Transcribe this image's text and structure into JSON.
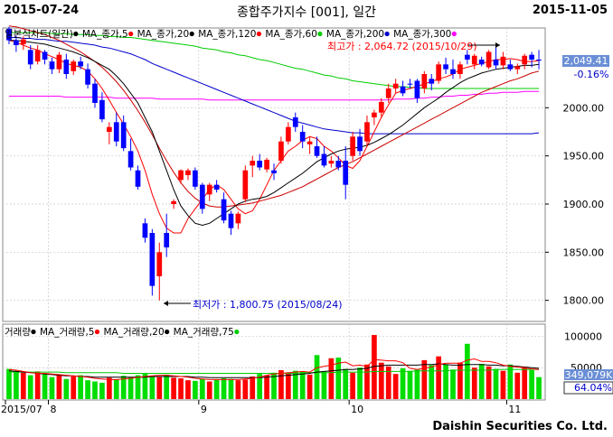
{
  "header": {
    "start_date": "2015-07-24",
    "title": "종합주가지수 [001], 일간",
    "end_date": "2015-11-05"
  },
  "footer": {
    "brand": "Daishin Securities Co. Ltd."
  },
  "price_panel": {
    "legend": [
      {
        "label": "일본식차트(일간)",
        "color": "#000000"
      },
      {
        "label": "MA_종가,5",
        "color": "#ff0000"
      },
      {
        "label": "MA_종가,20",
        "color": "#000000"
      },
      {
        "label": "MA_종가,120",
        "color": "#ff0000"
      },
      {
        "label": "MA_종가,60",
        "color": "#00cc00"
      },
      {
        "label": "MA_종가,200",
        "color": "#0000cc"
      },
      {
        "label": "MA_종가,300",
        "color": "#ff00ff"
      }
    ],
    "high_label": "최고가 : 2,064.72 (2015/10/29)",
    "low_label": "최저가 : 1,800.75 (2015/08/24)",
    "current_price": "2,049.41",
    "change_pct": "-0.16%",
    "y_ticks": [
      "2000.00",
      "1950.00",
      "1900.00",
      "1850.00",
      "1800.00"
    ]
  },
  "volume_panel": {
    "legend": [
      {
        "label": "거래량",
        "color": "#000000"
      },
      {
        "label": "MA_거래량,5",
        "color": "#ff0000"
      },
      {
        "label": "MA_거래량,20",
        "color": "#000000"
      },
      {
        "label": "MA_거래량,75",
        "color": "#00cc00"
      }
    ],
    "current_volume": "349,079K",
    "volume_pct": "64.04%",
    "y_ticks": [
      "100000",
      "50000"
    ]
  },
  "x_axis": {
    "labels": [
      "2015/07",
      "8",
      "9",
      "10",
      "11"
    ]
  },
  "colors": {
    "up": "#ff0000",
    "down": "#0000ff",
    "vol_up": "#ff0000",
    "vol_down": "#00dd00",
    "ma5": "#ff0000",
    "ma20": "#000000",
    "ma60": "#00cc00",
    "ma120": "#cc0000",
    "ma200": "#0000cc",
    "ma300": "#ff00ff",
    "ma_vol75": "#00cc00",
    "grid": "#c8c8c8",
    "price_box": "#6b8fd6"
  },
  "chart_data": [
    {
      "type": "candlestick",
      "title": "종합주가지수 [001], 일간",
      "ylim": [
        1780,
        2080
      ],
      "y_ticks": [
        2000,
        1950,
        1900,
        1850,
        1800
      ],
      "x_labels": [
        "2015/07",
        "8",
        "9",
        "10",
        "11"
      ],
      "candles": [
        [
          2082,
          2084,
          2066,
          2070
        ],
        [
          2070,
          2075,
          2058,
          2065
        ],
        [
          2066,
          2074,
          2060,
          2071
        ],
        [
          2060,
          2065,
          2040,
          2045
        ],
        [
          2048,
          2065,
          2045,
          2060
        ],
        [
          2058,
          2060,
          2045,
          2050
        ],
        [
          2048,
          2052,
          2035,
          2040
        ],
        [
          2040,
          2058,
          2036,
          2055
        ],
        [
          2050,
          2056,
          2030,
          2035
        ],
        [
          2038,
          2050,
          2034,
          2048
        ],
        [
          2048,
          2053,
          2040,
          2043
        ],
        [
          2040,
          2046,
          2020,
          2024
        ],
        [
          2025,
          2030,
          2000,
          2005
        ],
        [
          2008,
          2016,
          1985,
          1988
        ],
        [
          1975,
          1985,
          1962,
          1980
        ],
        [
          1985,
          1995,
          1960,
          1965
        ],
        [
          1985,
          1992,
          1955,
          1958
        ],
        [
          1955,
          1968,
          1935,
          1938
        ],
        [
          1935,
          1940,
          1915,
          1918
        ],
        [
          1880,
          1885,
          1860,
          1865
        ],
        [
          1870,
          1874,
          1805,
          1815
        ],
        [
          1825,
          1860,
          1800,
          1850
        ],
        [
          1870,
          1890,
          1845,
          1855
        ],
        [
          1900,
          1905,
          1895,
          1903
        ],
        [
          1925,
          1936,
          1921,
          1935
        ],
        [
          1930,
          1937,
          1925,
          1935
        ],
        [
          1935,
          1938,
          1915,
          1918
        ],
        [
          1920,
          1922,
          1890,
          1895
        ],
        [
          1910,
          1922,
          1903,
          1920
        ],
        [
          1920,
          1925,
          1912,
          1915
        ],
        [
          1905,
          1912,
          1880,
          1883
        ],
        [
          1890,
          1893,
          1868,
          1875
        ],
        [
          1880,
          1892,
          1874,
          1890
        ],
        [
          1905,
          1940,
          1902,
          1935
        ],
        [
          1940,
          1950,
          1928,
          1945
        ],
        [
          1945,
          1952,
          1935,
          1938
        ],
        [
          1936,
          1948,
          1933,
          1946
        ],
        [
          1935,
          1942,
          1925,
          1932
        ],
        [
          1945,
          1970,
          1942,
          1965
        ],
        [
          1965,
          1985,
          1962,
          1980
        ],
        [
          1990,
          1995,
          1975,
          1980
        ],
        [
          1975,
          1982,
          1958,
          1965
        ],
        [
          1962,
          1970,
          1952,
          1965
        ],
        [
          1960,
          1970,
          1948,
          1950
        ],
        [
          1952,
          1960,
          1938,
          1940
        ],
        [
          1942,
          1950,
          1938,
          1945
        ],
        [
          1945,
          1950,
          1935,
          1938
        ],
        [
          1945,
          1960,
          1905,
          1920
        ],
        [
          1950,
          1975,
          1945,
          1970
        ],
        [
          1970,
          1978,
          1950,
          1955
        ],
        [
          1965,
          1992,
          1960,
          1985
        ],
        [
          1990,
          1998,
          1982,
          1995
        ],
        [
          1995,
          2010,
          1990,
          2006
        ],
        [
          2010,
          2025,
          2005,
          2020
        ],
        [
          2020,
          2030,
          2015,
          2025
        ],
        [
          2022,
          2028,
          2012,
          2015
        ],
        [
          2025,
          2030,
          2020,
          2024
        ],
        [
          2028,
          2030,
          2005,
          2010
        ],
        [
          2020,
          2038,
          2015,
          2035
        ],
        [
          2030,
          2035,
          2018,
          2025
        ],
        [
          2028,
          2048,
          2025,
          2045
        ],
        [
          2045,
          2052,
          2035,
          2040
        ],
        [
          2040,
          2050,
          2030,
          2035
        ],
        [
          2035,
          2048,
          2030,
          2045
        ],
        [
          2055,
          2060,
          2045,
          2050
        ],
        [
          2045,
          2056,
          2040,
          2054
        ],
        [
          2050,
          2053,
          2043,
          2045
        ],
        [
          2042,
          2060,
          2040,
          2058
        ],
        [
          2050,
          2064,
          2040,
          2044
        ],
        [
          2044,
          2058,
          2040,
          2053
        ],
        [
          2045,
          2050,
          2038,
          2040
        ],
        [
          2040,
          2046,
          2035,
          2043
        ],
        [
          2045,
          2056,
          2040,
          2054
        ],
        [
          2055,
          2058,
          2042,
          2050
        ],
        [
          2050,
          2060,
          2040,
          2049
        ]
      ],
      "ma5": [
        2070,
        2068,
        2065,
        2062,
        2060,
        2056,
        2053,
        2050,
        2046,
        2044,
        2042,
        2038,
        2030,
        2020,
        2008,
        1995,
        1983,
        1970,
        1955,
        1935,
        1910,
        1890,
        1875,
        1870,
        1870,
        1885,
        1895,
        1905,
        1915,
        1920,
        1915,
        1905,
        1895,
        1890,
        1893,
        1905,
        1920,
        1935,
        1945,
        1955,
        1960,
        1966,
        1970,
        1968,
        1960,
        1955,
        1948,
        1940,
        1937,
        1945,
        1960,
        1975,
        1990,
        2003,
        2015,
        2018,
        2020,
        2022,
        2025,
        2027,
        2030,
        2032,
        2035,
        2040,
        2042,
        2044,
        2046,
        2048,
        2050,
        2050,
        2051,
        2050,
        2048,
        2048,
        2049
      ],
      "ma20": [
        2070,
        2070,
        2069,
        2068,
        2067,
        2066,
        2064,
        2062,
        2060,
        2058,
        2055,
        2052,
        2048,
        2044,
        2040,
        2033,
        2025,
        2015,
        2005,
        1990,
        1975,
        1955,
        1935,
        1915,
        1898,
        1888,
        1880,
        1878,
        1880,
        1885,
        1890,
        1895,
        1900,
        1903,
        1905,
        1906,
        1908,
        1912,
        1917,
        1922,
        1927,
        1932,
        1938,
        1944,
        1948,
        1952,
        1955,
        1957,
        1958,
        1959,
        1961,
        1964,
        1968,
        1972,
        1977,
        1982,
        1988,
        1994,
        2000,
        2005,
        2010,
        2016,
        2021,
        2026,
        2030,
        2033,
        2036,
        2038,
        2040,
        2041,
        2042,
        2043,
        2044,
        2044,
        2045
      ],
      "ma60": [
        2078,
        2078,
        2078,
        2078,
        2078,
        2078,
        2077,
        2077,
        2077,
        2076,
        2076,
        2076,
        2075,
        2075,
        2074,
        2074,
        2073,
        2073,
        2072,
        2071,
        2070,
        2069,
        2068,
        2067,
        2066,
        2065,
        2064,
        2062,
        2061,
        2060,
        2058,
        2057,
        2055,
        2054,
        2052,
        2050,
        2049,
        2047,
        2045,
        2043,
        2041,
        2040,
        2038,
        2036,
        2034,
        2033,
        2031,
        2030,
        2028,
        2027,
        2026,
        2025,
        2024,
        2023,
        2022,
        2022,
        2021,
        2021,
        2020,
        2020,
        2020,
        2020,
        2020,
        2020,
        2020,
        2020,
        2020,
        2020,
        2020,
        2020,
        2020,
        2020,
        2020,
        2020,
        2020
      ],
      "ma120": [
        2085,
        2084,
        2082,
        2080,
        2078,
        2076,
        2073,
        2070,
        2066,
        2062,
        2058,
        2053,
        2048,
        2042,
        2035,
        2027,
        2018,
        2008,
        1997,
        1985,
        1972,
        1958,
        1945,
        1933,
        1922,
        1913,
        1906,
        1901,
        1898,
        1897,
        1897,
        1898,
        1899,
        1900,
        1901,
        1903,
        1905,
        1907,
        1909,
        1912,
        1915,
        1918,
        1922,
        1926,
        1930,
        1934,
        1938,
        1941,
        1944,
        1948,
        1952,
        1956,
        1960,
        1964,
        1968,
        1972,
        1976,
        1980,
        1984,
        1988,
        1992,
        1996,
        2000,
        2004,
        2008,
        2012,
        2016,
        2019,
        2022,
        2025,
        2028,
        2030,
        2033,
        2036,
        2038
      ],
      "ma200": [
        2073,
        2073,
        2072,
        2072,
        2071,
        2071,
        2070,
        2069,
        2069,
        2068,
        2067,
        2066,
        2065,
        2063,
        2062,
        2060,
        2058,
        2056,
        2053,
        2050,
        2046,
        2043,
        2040,
        2037,
        2034,
        2031,
        2028,
        2025,
        2022,
        2019,
        2016,
        2013,
        2010,
        2007,
        2004,
        2001,
        1998,
        1995,
        1992,
        1989,
        1986,
        1984,
        1982,
        1980,
        1978,
        1977,
        1976,
        1975,
        1974,
        1974,
        1973,
        1973,
        1973,
        1973,
        1973,
        1973,
        1973,
        1973,
        1973,
        1973,
        1973,
        1973,
        1973,
        1973,
        1973,
        1973,
        1973,
        1973,
        1973,
        1973,
        1973,
        1973,
        1973,
        1973,
        1974
      ],
      "ma300": [
        2012,
        2012,
        2012,
        2012,
        2012,
        2012,
        2012,
        2012,
        2011,
        2011,
        2011,
        2011,
        2011,
        2011,
        2011,
        2010,
        2010,
        2010,
        2010,
        2010,
        2010,
        2009,
        2009,
        2009,
        2009,
        2009,
        2009,
        2009,
        2008,
        2008,
        2008,
        2008,
        2008,
        2008,
        2008,
        2008,
        2008,
        2008,
        2008,
        2008,
        2008,
        2008,
        2008,
        2008,
        2008,
        2008,
        2008,
        2008,
        2008,
        2008,
        2008,
        2008,
        2008,
        2008,
        2009,
        2009,
        2009,
        2010,
        2010,
        2011,
        2011,
        2012,
        2012,
        2013,
        2013,
        2014,
        2014,
        2015,
        2015,
        2016,
        2016,
        2016,
        2017,
        2017,
        2017
      ]
    },
    {
      "type": "bar",
      "ylim": [
        0,
        115000
      ],
      "y_ticks": [
        100000,
        50000
      ],
      "volume": [
        48000,
        45000,
        42000,
        38000,
        44000,
        40000,
        35000,
        39000,
        32000,
        36000,
        38000,
        30000,
        28000,
        26000,
        34000,
        31000,
        37000,
        35000,
        38000,
        41000,
        37000,
        35000,
        39000,
        34000,
        33000,
        30000,
        29000,
        32000,
        28000,
        31000,
        33000,
        32000,
        30000,
        31000,
        36000,
        40000,
        38000,
        42000,
        46000,
        41000,
        45000,
        44000,
        39000,
        70000,
        44000,
        65000,
        66000,
        48000,
        42000,
        50000,
        55000,
        102000,
        58000,
        52000,
        40000,
        49000,
        45000,
        47000,
        62000,
        54000,
        68000,
        55000,
        47000,
        58000,
        88000,
        50000,
        56000,
        52000,
        48000,
        45000,
        55000,
        42000,
        50000,
        46000,
        35000
      ],
      "ma5": [
        47000,
        46000,
        44000,
        42000,
        41000,
        41000,
        40000,
        39000,
        38000,
        37000,
        36000,
        35000,
        33000,
        32000,
        31000,
        31000,
        32000,
        33000,
        35000,
        36000,
        37000,
        38000,
        38000,
        37000,
        36000,
        35000,
        33000,
        32000,
        31000,
        31000,
        31000,
        31000,
        31000,
        32000,
        33000,
        35000,
        38000,
        40000,
        41000,
        42000,
        43000,
        44000,
        43000,
        50000,
        52000,
        54000,
        57000,
        59000,
        53000,
        54000,
        52000,
        63000,
        62000,
        61000,
        61000,
        58000,
        49000,
        47000,
        49000,
        51000,
        55000,
        57000,
        57000,
        57000,
        62000,
        64000,
        60000,
        60000,
        58000,
        54000,
        52000,
        51000,
        50000,
        48000,
        47000
      ],
      "ma20": [
        45000,
        44000,
        43000,
        42000,
        41000,
        40000,
        39000,
        38000,
        37000,
        37000,
        36000,
        36000,
        35000,
        35000,
        35000,
        35000,
        35000,
        35000,
        35000,
        35000,
        36000,
        36000,
        36000,
        36000,
        36000,
        36000,
        35000,
        35000,
        34000,
        34000,
        34000,
        34000,
        34000,
        34000,
        34000,
        34000,
        35000,
        36000,
        37000,
        38000,
        39000,
        40000,
        41000,
        43000,
        44000,
        45000,
        46000,
        47000,
        47000,
        48000,
        49000,
        52000,
        53000,
        54000,
        54000,
        54000,
        54000,
        54000,
        55000,
        55000,
        56000,
        55000,
        54000,
        54000,
        55000,
        55000,
        55000,
        54000,
        54000,
        53000,
        53000,
        52000,
        51000,
        50000,
        49000
      ],
      "ma75": [
        43000,
        43000,
        43000,
        43000,
        43000,
        43000,
        43000,
        43000,
        42000,
        42000,
        42000,
        42000,
        42000,
        42000,
        42000,
        42000,
        41000,
        41000,
        41000,
        41000,
        41000,
        41000,
        41000,
        41000,
        41000,
        41000,
        41000,
        41000,
        41000,
        41000,
        41000,
        41000,
        41000,
        41000,
        41000,
        41000,
        41000,
        41000,
        41000,
        41000,
        41000,
        42000,
        42000,
        42000,
        42000,
        42000,
        43000,
        43000,
        43000,
        43000,
        43000,
        44000,
        44000,
        44000,
        44000,
        44000,
        44000,
        45000,
        45000,
        45000,
        45000,
        45000,
        46000,
        46000,
        46000,
        46000,
        46000,
        46000,
        47000,
        47000,
        47000,
        47000,
        47000,
        47000,
        47000
      ]
    }
  ]
}
